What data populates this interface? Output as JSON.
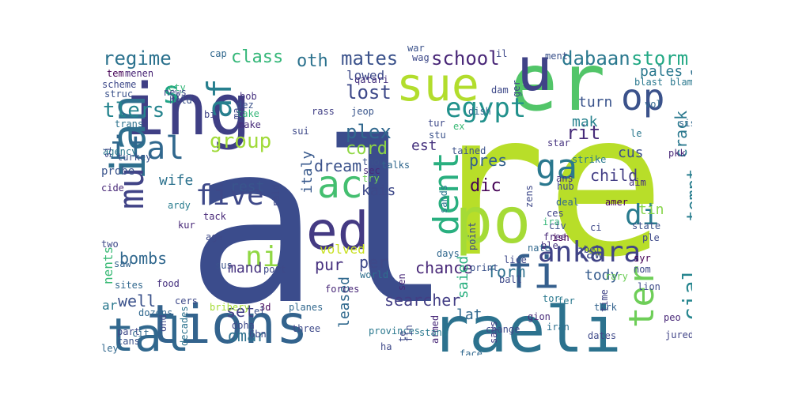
{
  "words": [
    {
      "text": "al",
      "color": "#3b4c8c"
    },
    {
      "text": "re",
      "color": "#b8de29"
    },
    {
      "text": "raeli",
      "color": "#2c728e"
    },
    {
      "text": "tions",
      "color": "#33638d"
    },
    {
      "text": "ing",
      "color": "#3f3f85"
    },
    {
      "text": "ian",
      "color": "#2e6f8e"
    },
    {
      "text": "er",
      "color": "#52c569"
    },
    {
      "text": "po",
      "color": "#a5db36"
    },
    {
      "text": "sue",
      "color": "#b2dd2d"
    },
    {
      "text": "u",
      "color": "#404387"
    },
    {
      "text": "ed",
      "color": "#443a83"
    },
    {
      "text": "tal",
      "color": "#31688e"
    },
    {
      "text": "ac",
      "color": "#44bf70"
    },
    {
      "text": "dent",
      "color": "#29af7f"
    },
    {
      "text": "fi",
      "color": "#355f8d"
    },
    {
      "text": "ankara",
      "color": "#414487"
    },
    {
      "text": "mu",
      "color": "#414487"
    },
    {
      "text": "op",
      "color": "#3b528b"
    },
    {
      "text": "ter",
      "color": "#6ece58"
    },
    {
      "text": "ital",
      "color": "#31688e"
    },
    {
      "text": "ga",
      "color": "#2a788e"
    },
    {
      "text": "egypt",
      "color": "#21918c"
    },
    {
      "text": "five",
      "color": "#3e4989"
    },
    {
      "text": "di",
      "color": "#297b8e"
    },
    {
      "text": "ni",
      "color": "#90d743"
    },
    {
      "text": "s",
      "color": "#20a486"
    },
    {
      "text": "af",
      "color": "#277f8e"
    },
    {
      "text": "cial",
      "color": "#25858e"
    },
    {
      "text": "lost",
      "color": "#3e4989"
    },
    {
      "text": "group",
      "color": "#a0da39"
    },
    {
      "text": "school",
      "color": "#482677"
    },
    {
      "text": "mates",
      "color": "#3b528b"
    },
    {
      "text": "dabaan",
      "color": "#2a788e"
    },
    {
      "text": "storm",
      "color": "#22a884"
    },
    {
      "text": "regime",
      "color": "#2c728e"
    },
    {
      "text": "class",
      "color": "#35b779"
    },
    {
      "text": "oth",
      "color": "#2c728e"
    },
    {
      "text": "tlers",
      "color": "#25848e"
    },
    {
      "text": "plex",
      "color": "#31688e"
    },
    {
      "text": "cord",
      "color": "#8fd744"
    },
    {
      "text": "waqf",
      "color": "#2e6f8e"
    },
    {
      "text": "tempt",
      "color": "#287d8e"
    },
    {
      "text": "lowed",
      "color": "#3e4a89"
    },
    {
      "text": "rit",
      "color": "#472c7a"
    },
    {
      "text": "turn",
      "color": "#3a548c"
    },
    {
      "text": "pales",
      "color": "#2a788e"
    },
    {
      "text": "mak",
      "color": "#26828e"
    },
    {
      "text": "cus",
      "color": "#3d4e8a"
    },
    {
      "text": "child",
      "color": "#433e85"
    },
    {
      "text": "dream",
      "color": "#3b528b"
    },
    {
      "text": "est",
      "color": "#46327e"
    },
    {
      "text": "pres",
      "color": "#34618d"
    },
    {
      "text": "dic",
      "color": "#440154"
    },
    {
      "text": "crack",
      "color": "#2a788e"
    },
    {
      "text": "tin",
      "color": "#86d549"
    },
    {
      "text": "kais",
      "color": "#3e4989"
    },
    {
      "text": "wife",
      "color": "#2c728e"
    },
    {
      "text": "rest",
      "color": "#39558c"
    },
    {
      "text": "bombs",
      "color": "#31688e"
    },
    {
      "text": "well",
      "color": "#3b528b"
    },
    {
      "text": "pur",
      "color": "#46307e"
    },
    {
      "text": "per",
      "color": "#3e4989"
    },
    {
      "text": "chance",
      "color": "#482878"
    },
    {
      "text": "form",
      "color": "#2d708e"
    },
    {
      "text": "law",
      "color": "#3e4a89"
    },
    {
      "text": "mand",
      "color": "#46337f"
    },
    {
      "text": "set",
      "color": "#423f85"
    },
    {
      "text": "omar",
      "color": "#2d708e"
    },
    {
      "text": "searcher",
      "color": "#433e85"
    },
    {
      "text": "leased",
      "color": "#30698e"
    },
    {
      "text": "lat",
      "color": "#31688e"
    },
    {
      "text": "saied",
      "color": "#29af7f"
    },
    {
      "text": "tody",
      "color": "#365c8d"
    },
    {
      "text": "ar",
      "color": "#2a788e"
    },
    {
      "text": "nents",
      "color": "#3aba76"
    },
    {
      "text": "italy",
      "color": "#38598c"
    },
    {
      "text": "volved",
      "color": "#c8e020"
    },
    {
      "text": "3d",
      "color": "#46085c"
    },
    {
      "text": "6bn",
      "color": "#3e4989"
    },
    {
      "text": "doha",
      "color": "#3e4989"
    },
    {
      "text": "dozens",
      "color": "#31688e"
    },
    {
      "text": "ardy",
      "color": "#287c8e"
    },
    {
      "text": "food",
      "color": "#46307e"
    },
    {
      "text": "sites",
      "color": "#31688e"
    },
    {
      "text": "saw",
      "color": "#33638d"
    },
    {
      "text": "probe",
      "color": "#3a548c"
    },
    {
      "text": "cide",
      "color": "#482878"
    },
    {
      "text": "trans",
      "color": "#2c728e"
    },
    {
      "text": "scheme",
      "color": "#3e4989"
    },
    {
      "text": "struc",
      "color": "#3b528b"
    },
    {
      "text": "tem",
      "color": "#440154"
    },
    {
      "text": "menen",
      "color": "#482475"
    },
    {
      "text": "held",
      "color": "#3b528b"
    },
    {
      "text": "dez",
      "color": "#3b528b"
    },
    {
      "text": "bi",
      "color": "#414487"
    },
    {
      "text": "take",
      "color": "#35b779"
    },
    {
      "text": "make",
      "color": "#472c7a"
    },
    {
      "text": "bob",
      "color": "#46307e"
    },
    {
      "text": "sui",
      "color": "#3e4989"
    },
    {
      "text": "jeop",
      "color": "#39558c"
    },
    {
      "text": "rass",
      "color": "#424086"
    },
    {
      "text": "tur",
      "color": "#3e4989"
    },
    {
      "text": "dish",
      "color": "#31688e"
    },
    {
      "text": "ex",
      "color": "#3aba76"
    },
    {
      "text": "stu",
      "color": "#3b528b"
    },
    {
      "text": "thou",
      "color": "#3b528b"
    },
    {
      "text": "sec",
      "color": "#482878"
    },
    {
      "text": "try",
      "color": "#6ece58"
    },
    {
      "text": "strike",
      "color": "#2a788e"
    },
    {
      "text": "ans",
      "color": "#46307e"
    },
    {
      "text": "hub",
      "color": "#3e4989"
    },
    {
      "text": "amer",
      "color": "#440154"
    },
    {
      "text": "ces",
      "color": "#414487"
    },
    {
      "text": "free",
      "color": "#482878"
    },
    {
      "text": "ira",
      "color": "#35b779"
    },
    {
      "text": "ish",
      "color": "#440154"
    },
    {
      "text": "ble",
      "color": "#46337f"
    },
    {
      "text": "lice",
      "color": "#3e4989"
    },
    {
      "text": "days",
      "color": "#31688e"
    },
    {
      "text": "forces",
      "color": "#482878"
    },
    {
      "text": "world",
      "color": "#2e6f8e"
    },
    {
      "text": "sen",
      "color": "#482878"
    },
    {
      "text": "tor",
      "color": "#2a788e"
    },
    {
      "text": "fer",
      "color": "#2a788e"
    },
    {
      "text": "turk",
      "color": "#33638d"
    },
    {
      "text": "iran",
      "color": "#2d708e"
    },
    {
      "text": "time",
      "color": "#414487"
    },
    {
      "text": "armed",
      "color": "#482878"
    },
    {
      "text": "says",
      "color": "#433e85"
    },
    {
      "text": "gion",
      "color": "#472c7a"
    },
    {
      "text": "change",
      "color": "#3e4989"
    },
    {
      "text": "three",
      "color": "#3e4989"
    },
    {
      "text": "planes",
      "color": "#31688e"
    },
    {
      "text": "decades",
      "color": "#2c728e"
    },
    {
      "text": "bribery",
      "color": "#a5db36"
    },
    {
      "text": "cers",
      "color": "#3e4989"
    },
    {
      "text": "tack",
      "color": "#482878"
    },
    {
      "text": "kur",
      "color": "#482878"
    },
    {
      "text": "two",
      "color": "#3e4989"
    },
    {
      "text": "part",
      "color": "#3e4989"
    },
    {
      "text": "cans",
      "color": "#3b528b"
    },
    {
      "text": "ley",
      "color": "#31688e"
    },
    {
      "text": "jured",
      "color": "#414487"
    },
    {
      "text": "dates",
      "color": "#3e4989"
    },
    {
      "text": "peo",
      "color": "#482878"
    },
    {
      "text": "lion",
      "color": "#3e4989"
    },
    {
      "text": "syr",
      "color": "#440154"
    },
    {
      "text": "rary",
      "color": "#6ece58"
    },
    {
      "text": "nom",
      "color": "#3e4989"
    },
    {
      "text": "ple",
      "color": "#3e4989"
    },
    {
      "text": "state",
      "color": "#3b528b"
    },
    {
      "text": "deal",
      "color": "#31688e"
    },
    {
      "text": "civ",
      "color": "#3b528b"
    },
    {
      "text": "nate",
      "color": "#31688e"
    },
    {
      "text": "aim",
      "color": "#46307e"
    },
    {
      "text": "le",
      "color": "#2a788e"
    },
    {
      "text": "sisi",
      "color": "#31688e"
    },
    {
      "text": "pkk",
      "color": "#482878"
    },
    {
      "text": "star",
      "color": "#46337f"
    },
    {
      "text": "tained",
      "color": "#3b528b"
    },
    {
      "text": "talks",
      "color": "#31688e"
    },
    {
      "text": "qatari",
      "color": "#46307e"
    },
    {
      "text": "ger",
      "color": "#3e4989"
    },
    {
      "text": "dam",
      "color": "#3e4989"
    },
    {
      "text": "blast",
      "color": "#2a788e"
    },
    {
      "text": "blame",
      "color": "#2a788e"
    },
    {
      "text": "vol",
      "color": "#31688e"
    },
    {
      "text": "ment",
      "color": "#3b528b"
    },
    {
      "text": "war",
      "color": "#3b528b"
    },
    {
      "text": "wag",
      "color": "#3e4989"
    },
    {
      "text": "cap",
      "color": "#31688e"
    },
    {
      "text": "agency",
      "color": "#2a788e"
    },
    {
      "text": "turkey",
      "color": "#3b528b"
    },
    {
      "text": "si",
      "color": "#3e4989"
    },
    {
      "text": "ety",
      "color": "#35b779"
    },
    {
      "text": "news",
      "color": "#3e4989"
    },
    {
      "text": "ball",
      "color": "#3e4989"
    },
    {
      "text": "sands",
      "color": "#2a788e"
    },
    {
      "text": "point",
      "color": "#3e4989"
    },
    {
      "text": "print",
      "color": "#3b528b"
    },
    {
      "text": "provinces",
      "color": "#2a788e"
    },
    {
      "text": "stand",
      "color": "#2a788e"
    },
    {
      "text": "face",
      "color": "#31688e"
    },
    {
      "text": "fin",
      "color": "#3e4989"
    },
    {
      "text": "ha",
      "color": "#3e4989"
    },
    {
      "text": "el",
      "color": "#3b528b"
    },
    {
      "text": "raid",
      "color": "#3e4989"
    },
    {
      "text": "age",
      "color": "#3e4989"
    },
    {
      "text": "sus",
      "color": "#3b528b"
    },
    {
      "text": "port",
      "color": "#3e4989"
    },
    {
      "text": "il",
      "color": "#3e4989"
    },
    {
      "text": "ci",
      "color": "#3e4989"
    },
    {
      "text": "cit",
      "color": "#31688e"
    },
    {
      "text": "ond",
      "color": "#3e4989"
    },
    {
      "text": "ma",
      "color": "#3e4989"
    },
    {
      "text": "bel",
      "color": "#3e4989"
    },
    {
      "text": "zens",
      "color": "#3e4989"
    },
    {
      "text": "te",
      "color": "#3e4989"
    }
  ]
}
